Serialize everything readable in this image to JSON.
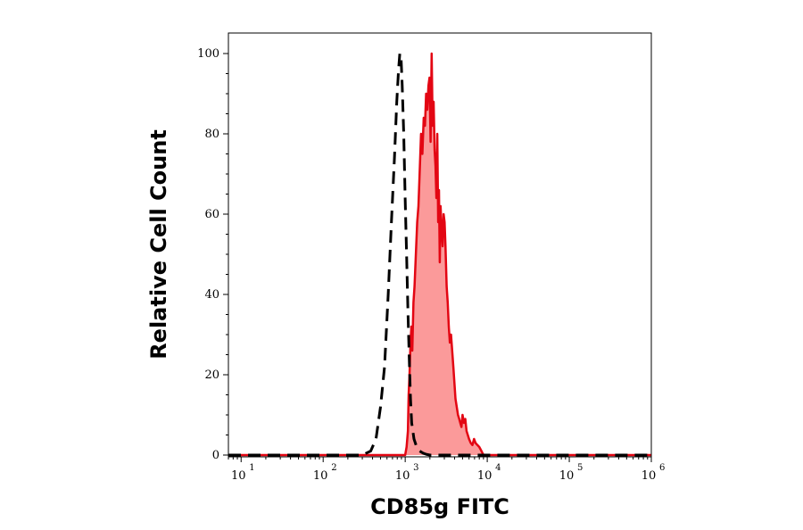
{
  "chart_data": {
    "type": "area",
    "title": "",
    "xlabel": "CD85g FITC",
    "ylabel": "Relative Cell Count",
    "x_scale": "log",
    "xlim": [
      7,
      1000000
    ],
    "ylim": [
      0,
      100
    ],
    "x_ticks": [
      {
        "value": 10,
        "base": "10",
        "exp": "1"
      },
      {
        "value": 100,
        "base": "10",
        "exp": "2"
      },
      {
        "value": 1000,
        "base": "10",
        "exp": "3"
      },
      {
        "value": 10000,
        "base": "10",
        "exp": "4"
      },
      {
        "value": 100000,
        "base": "10",
        "exp": "5"
      },
      {
        "value": 1000000,
        "base": "10",
        "exp": "6"
      }
    ],
    "y_ticks": [
      0,
      20,
      40,
      60,
      80,
      100
    ],
    "y_tick_labels": [
      "0",
      "20",
      "40",
      "60",
      "80",
      "100"
    ],
    "grid": false,
    "legend": "none",
    "series": [
      {
        "style": "dashed",
        "color": "#000000",
        "fill": "none",
        "x": [
          7,
          300,
          380,
          440,
          500,
          560,
          620,
          680,
          740,
          790,
          830,
          860,
          890,
          920,
          960,
          1000,
          1040,
          1080,
          1120,
          1160,
          1200,
          1280,
          1380,
          1500,
          1650,
          1800,
          2000,
          2300,
          2800,
          3500,
          5000,
          1000000
        ],
        "y": [
          0,
          0,
          1,
          4,
          12,
          22,
          40,
          58,
          74,
          88,
          96,
          100,
          99,
          92,
          80,
          64,
          50,
          36,
          24,
          14,
          8,
          4,
          2,
          1,
          0.5,
          0.2,
          0,
          0,
          0,
          0,
          0,
          0
        ]
      },
      {
        "style": "solid",
        "color": "#e30613",
        "fill": "#fb9a9a",
        "x": [
          7,
          300,
          900,
          1000,
          1040,
          1080,
          1100,
          1130,
          1160,
          1190,
          1220,
          1260,
          1300,
          1350,
          1400,
          1450,
          1500,
          1560,
          1620,
          1680,
          1740,
          1800,
          1860,
          1920,
          1980,
          2040,
          2100,
          2160,
          2220,
          2280,
          2340,
          2400,
          2460,
          2520,
          2580,
          2640,
          2700,
          2780,
          2860,
          2940,
          3020,
          3100,
          3200,
          3300,
          3400,
          3500,
          3620,
          3740,
          3860,
          3980,
          4100,
          4250,
          4400,
          4550,
          4700,
          4850,
          5000,
          5200,
          5400,
          5600,
          5800,
          6000,
          6300,
          6600,
          6900,
          7200,
          7600,
          8000,
          8500,
          9000,
          1000000
        ],
        "y": [
          0,
          0,
          0,
          0,
          2,
          6,
          15,
          20,
          28,
          32,
          26,
          38,
          42,
          50,
          58,
          62,
          70,
          80,
          75,
          84,
          82,
          90,
          86,
          92,
          94,
          78,
          100,
          82,
          88,
          76,
          72,
          64,
          80,
          58,
          66,
          48,
          62,
          56,
          52,
          60,
          58,
          52,
          42,
          38,
          32,
          28,
          30,
          26,
          22,
          18,
          14,
          12,
          10,
          9,
          8,
          7,
          10,
          8,
          9,
          6,
          5,
          4,
          3,
          2.5,
          4,
          3,
          2.5,
          2,
          1,
          0,
          0
        ]
      }
    ]
  }
}
